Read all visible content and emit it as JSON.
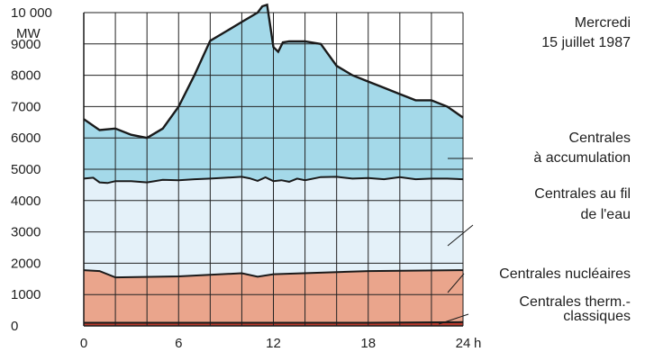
{
  "chart_data": {
    "type": "area",
    "title": [
      "Mercredi",
      "15 juillet 1987"
    ],
    "ylabel": "MW",
    "xlabel": "",
    "x_unit": "h",
    "xlim": [
      0,
      24
    ],
    "ylim": [
      0,
      10000
    ],
    "x_ticks": [
      0,
      6,
      12,
      18,
      24
    ],
    "x_tick_labels": [
      "0",
      "6",
      "12",
      "18",
      "24"
    ],
    "y_ticks": [
      0,
      1000,
      2000,
      3000,
      4000,
      5000,
      6000,
      7000,
      8000,
      9000,
      10000
    ],
    "y_tick_labels": [
      "0",
      "1000",
      "2000",
      "3000",
      "4000",
      "5000",
      "6000",
      "7000",
      "8000",
      "9000",
      "10 000"
    ],
    "grid": true,
    "stacked": true,
    "series": [
      {
        "name": "Centrales therm.- classiques",
        "label_lines": [
          "Centrales therm.-",
          "classiques"
        ],
        "color": "#b8392c",
        "x": [
          0,
          6,
          12,
          18,
          24
        ],
        "values": [
          100,
          100,
          100,
          100,
          120
        ]
      },
      {
        "name": "Centrales nucléaires",
        "label_lines": [
          "Centrales nucléaires"
        ],
        "color": "#eaa58c",
        "x": [
          0,
          1,
          2,
          6,
          10,
          11,
          12,
          18,
          24
        ],
        "values": [
          1780,
          1750,
          1550,
          1580,
          1680,
          1570,
          1650,
          1750,
          1780
        ]
      },
      {
        "name": "Centrales au fil de l'eau",
        "label_lines": [
          "Centrales au fil",
          "de l'eau"
        ],
        "color": "#e4f1f9",
        "x": [
          0,
          0.6,
          1,
          1.5,
          2,
          3,
          4,
          5,
          6,
          7,
          8,
          9,
          10,
          10.5,
          11,
          11.5,
          12,
          12.5,
          13,
          13.5,
          14,
          15,
          16,
          17,
          18,
          19,
          20,
          21,
          22,
          23,
          24
        ],
        "values": [
          4700,
          4730,
          4580,
          4560,
          4620,
          4620,
          4580,
          4660,
          4650,
          4680,
          4700,
          4730,
          4760,
          4710,
          4630,
          4740,
          4620,
          4650,
          4600,
          4700,
          4650,
          4750,
          4760,
          4700,
          4720,
          4680,
          4750,
          4680,
          4700,
          4700,
          4680
        ]
      },
      {
        "name": "Centrales à accumulation",
        "label_lines": [
          "Centrales",
          "à accumulation"
        ],
        "color": "#a4d9e9",
        "x": [
          0,
          1,
          2,
          3,
          4,
          5,
          6,
          7,
          8,
          9,
          10,
          11,
          11.3,
          11.6,
          12,
          12.3,
          12.6,
          13,
          14,
          15,
          16,
          17,
          18,
          19,
          20,
          21,
          22,
          23,
          24
        ],
        "values": [
          6600,
          6250,
          6300,
          6100,
          6000,
          6300,
          7000,
          8000,
          9100,
          9400,
          9700,
          10000,
          10200,
          10250,
          8900,
          8750,
          9050,
          9080,
          9080,
          9000,
          8300,
          8000,
          7800,
          7600,
          7400,
          7200,
          7200,
          7000,
          6650
        ]
      }
    ]
  }
}
